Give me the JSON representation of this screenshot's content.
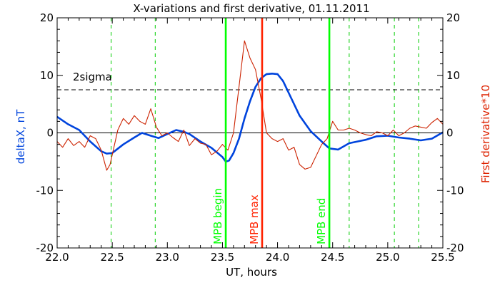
{
  "chart_data": {
    "type": "line",
    "title": "X-variations and first derivative, 01.11.2011",
    "xlabel": "UT, hours",
    "ylabel_left": "deltaX, nT",
    "ylabel_right": "First derivative*10",
    "xlim": [
      22.0,
      25.5
    ],
    "ylim": [
      -20,
      20
    ],
    "x_ticks": [
      "22.0",
      "22.5",
      "23.0",
      "23.5",
      "24.0",
      "24.5",
      "25.0",
      "25.5"
    ],
    "y_ticks": [
      "-20",
      "-10",
      "0",
      "10",
      "20"
    ],
    "threshold": {
      "label": "2sigma",
      "value": 7.5
    },
    "markers": [
      {
        "label": "MPB begin",
        "x": 23.53,
        "color": "#00ff00"
      },
      {
        "label": "MPB max",
        "x": 23.86,
        "color": "#ff2200"
      },
      {
        "label": "MPB end",
        "x": 24.47,
        "color": "#00ff00"
      }
    ],
    "dashed_verticals": [
      22.49,
      22.89,
      24.65,
      25.06,
      25.28
    ],
    "series": [
      {
        "axis": "left",
        "color": "#0044dd",
        "x": [
          22.0,
          22.1,
          22.2,
          22.3,
          22.4,
          22.45,
          22.5,
          22.6,
          22.7,
          22.77,
          22.85,
          22.92,
          23.0,
          23.08,
          23.15,
          23.2,
          23.3,
          23.4,
          23.5,
          23.53,
          23.56,
          23.6,
          23.65,
          23.7,
          23.75,
          23.8,
          23.85,
          23.9,
          23.95,
          24.0,
          24.05,
          24.1,
          24.2,
          24.3,
          24.4,
          24.47,
          24.55,
          24.65,
          24.8,
          24.9,
          25.0,
          25.1,
          25.2,
          25.3,
          25.4,
          25.5
        ],
        "y": [
          2.8,
          1.5,
          0.5,
          -1.5,
          -3.2,
          -3.6,
          -3.5,
          -2.0,
          -0.8,
          0.0,
          -0.5,
          -0.9,
          -0.2,
          0.5,
          0.2,
          -0.2,
          -1.5,
          -2.6,
          -4.2,
          -5.0,
          -4.8,
          -3.5,
          -1.0,
          2.5,
          5.5,
          8.0,
          9.5,
          10.2,
          10.3,
          10.2,
          9.0,
          7.0,
          3.0,
          0.3,
          -1.5,
          -2.7,
          -2.9,
          -1.8,
          -1.2,
          -0.6,
          -0.5,
          -0.8,
          -1.0,
          -1.3,
          -1.0,
          0.1
        ]
      },
      {
        "axis": "right",
        "color": "#cc2200",
        "x": [
          22.0,
          22.05,
          22.1,
          22.15,
          22.2,
          22.25,
          22.3,
          22.35,
          22.4,
          22.45,
          22.48,
          22.55,
          22.6,
          22.65,
          22.7,
          22.75,
          22.8,
          22.85,
          22.9,
          22.95,
          23.0,
          23.05,
          23.1,
          23.15,
          23.2,
          23.25,
          23.3,
          23.35,
          23.4,
          23.45,
          23.5,
          23.55,
          23.6,
          23.65,
          23.7,
          23.75,
          23.8,
          23.85,
          23.9,
          23.95,
          24.0,
          24.05,
          24.1,
          24.15,
          24.2,
          24.25,
          24.3,
          24.35,
          24.4,
          24.45,
          24.5,
          24.55,
          24.6,
          24.65,
          24.7,
          24.75,
          24.8,
          24.85,
          24.9,
          24.95,
          25.0,
          25.05,
          25.1,
          25.15,
          25.2,
          25.25,
          25.3,
          25.35,
          25.4,
          25.45,
          25.5
        ],
        "y": [
          -1.5,
          -2.5,
          -1.0,
          -2.2,
          -1.5,
          -2.5,
          -0.5,
          -1.0,
          -3.0,
          -6.5,
          -5.5,
          0.5,
          2.5,
          1.5,
          3.0,
          2.0,
          1.5,
          4.2,
          1.0,
          -0.5,
          0.0,
          -0.8,
          -1.5,
          0.5,
          -2.2,
          -1.0,
          -1.8,
          -2.0,
          -3.8,
          -3.2,
          -2.0,
          -3.0,
          0.0,
          8.0,
          16.0,
          13.0,
          11.0,
          6.0,
          0.0,
          -1.0,
          -1.5,
          -1.0,
          -3.0,
          -2.5,
          -5.5,
          -6.3,
          -6.0,
          -4.0,
          -2.0,
          -1.0,
          2.0,
          0.5,
          0.5,
          0.8,
          0.5,
          0.0,
          -0.3,
          -0.5,
          0.2,
          0.0,
          -0.5,
          0.5,
          -0.5,
          0.0,
          0.8,
          1.2,
          1.0,
          0.8,
          1.8,
          2.5,
          1.5
        ]
      }
    ]
  }
}
